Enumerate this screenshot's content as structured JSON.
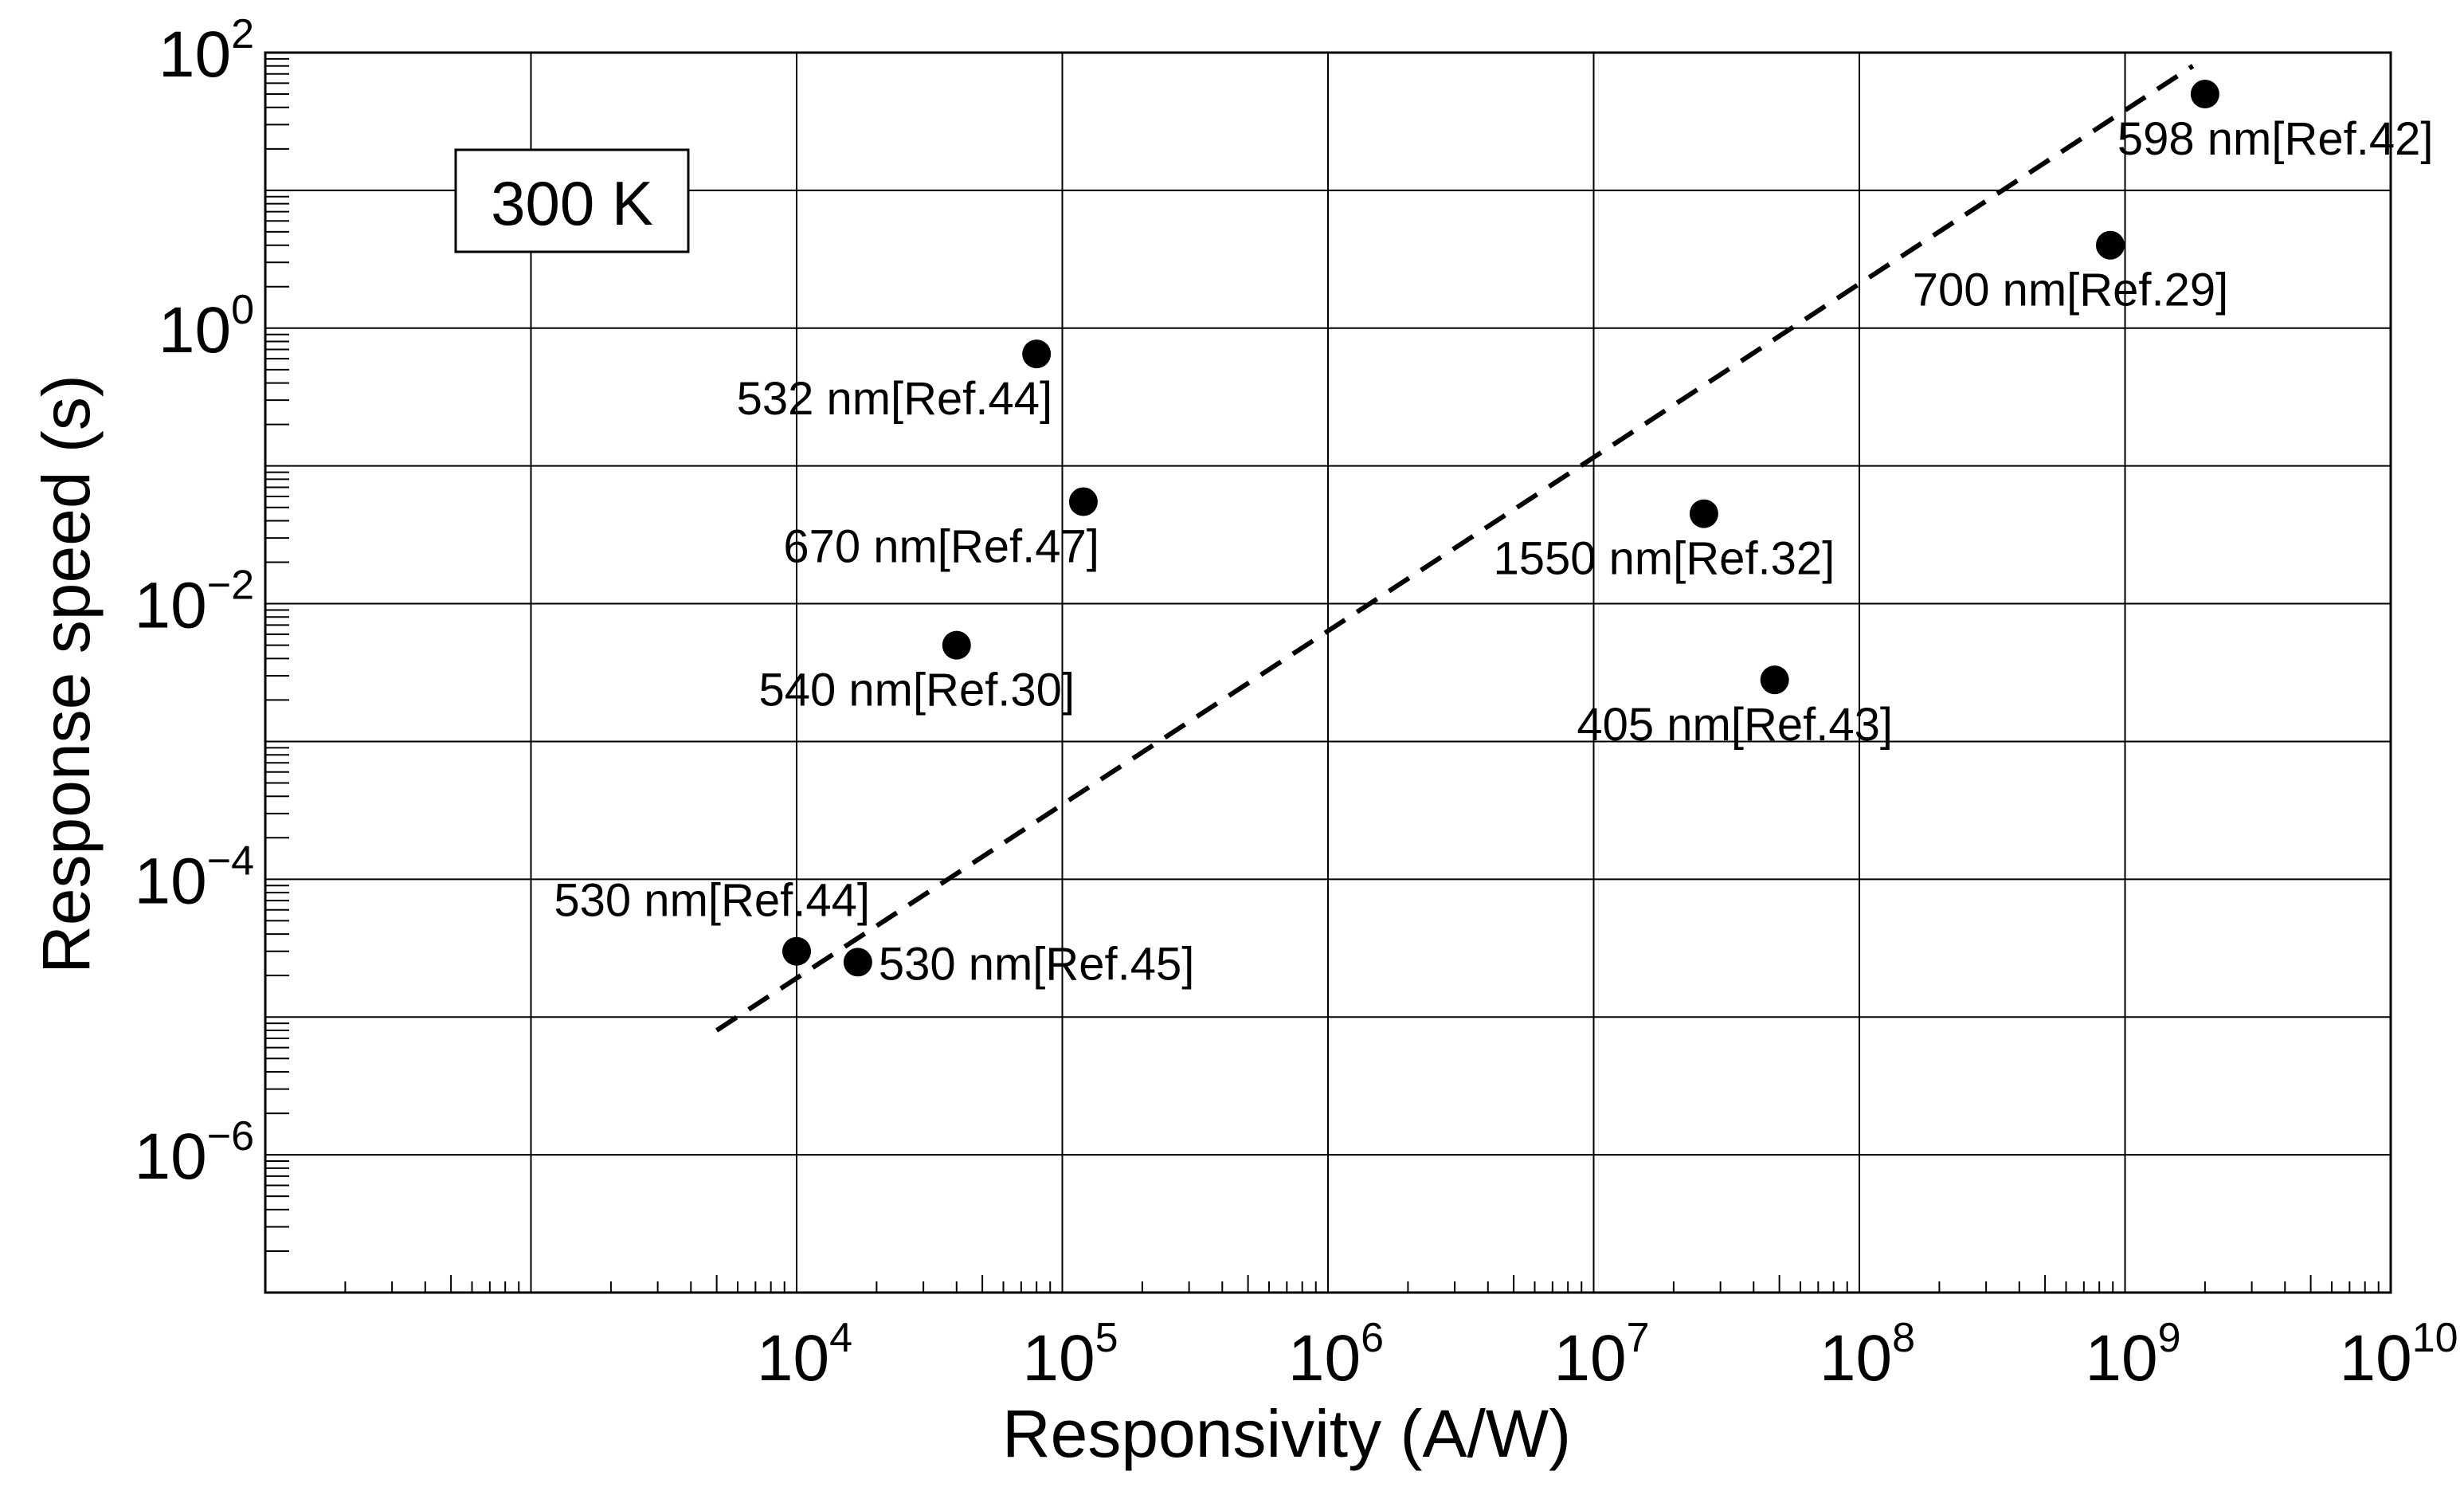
{
  "chart_data": {
    "type": "scatter",
    "xscale": "log",
    "yscale": "log",
    "xlabel": "Responsivity (A/W)",
    "ylabel": "Response speed (s)",
    "xlim": [
      100,
      10000000000
    ],
    "ylim": [
      1e-07,
      100
    ],
    "grid": true,
    "annotation": "300 K",
    "xticks": [
      {
        "base": "10",
        "exp": "4",
        "value": 10000
      },
      {
        "base": "10",
        "exp": "5",
        "value": 100000
      },
      {
        "base": "10",
        "exp": "6",
        "value": 1000000
      },
      {
        "base": "10",
        "exp": "7",
        "value": 10000000
      },
      {
        "base": "10",
        "exp": "8",
        "value": 100000000
      },
      {
        "base": "10",
        "exp": "9",
        "value": 1000000000
      },
      {
        "base": "10",
        "exp": "10",
        "value": 10000000000
      }
    ],
    "yticks": [
      {
        "base": "10",
        "exp": "2",
        "value": 100
      },
      {
        "base": "10",
        "exp": "0",
        "value": 1
      },
      {
        "base": "10",
        "exp": "−2",
        "value": 0.01
      },
      {
        "base": "10",
        "exp": "−4",
        "value": 0.0001
      },
      {
        "base": "10",
        "exp": "−6",
        "value": 1e-06
      }
    ],
    "points": [
      {
        "label": "598 nm[Ref.42]",
        "x": 2000000000,
        "y": 50,
        "label_pos": "below-right"
      },
      {
        "label": "700 nm[Ref.29]",
        "x": 880000000,
        "y": 4,
        "label_pos": "below"
      },
      {
        "label": "532 nm[Ref.44]",
        "x": 80000,
        "y": 0.65,
        "label_pos": "below-left"
      },
      {
        "label": "670 nm[Ref.47]",
        "x": 120000,
        "y": 0.055,
        "label_pos": "below-left"
      },
      {
        "label": "1550 nm[Ref.32]",
        "x": 26000000,
        "y": 0.045,
        "label_pos": "below"
      },
      {
        "label": "540 nm[Ref.30]",
        "x": 40000,
        "y": 0.005,
        "label_pos": "below"
      },
      {
        "label": "405 nm[Ref.43]",
        "x": 48000000,
        "y": 0.0028,
        "label_pos": "below"
      },
      {
        "label": "530 nm[Ref.44]",
        "x": 10000,
        "y": 3e-05,
        "label_pos": "above"
      },
      {
        "label": "530 nm[Ref.45]",
        "x": 17000,
        "y": 2.5e-05,
        "label_pos": "right"
      }
    ],
    "fit_line": {
      "style": "dashed",
      "x": [
        5000,
        1800000000
      ],
      "y": 8e-06,
      "y_end": 80
    }
  }
}
